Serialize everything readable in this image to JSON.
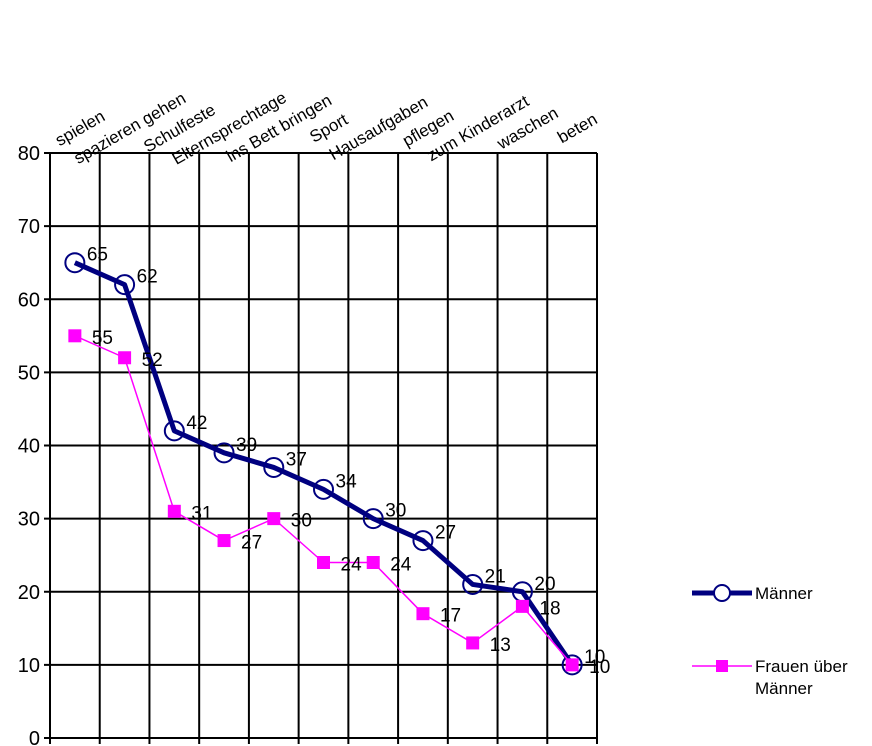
{
  "chart_data": {
    "type": "line",
    "title": "",
    "xlabel": "",
    "ylabel": "",
    "categories": [
      "spielen",
      "spazieren gehen",
      "Schulfeste",
      "Elternsprechtage",
      "ins Bett bringen",
      "Sport",
      "Hausaufgaben",
      "pflegen",
      "zum Kinderarzt",
      "waschen",
      "beten"
    ],
    "ylim": [
      0,
      80
    ],
    "yticks": [
      0,
      10,
      20,
      30,
      40,
      50,
      60,
      70,
      80
    ],
    "grid": true,
    "legend_position": "right",
    "series": [
      {
        "name": "Männer",
        "values": [
          65,
          62,
          42,
          39,
          37,
          34,
          30,
          27,
          21,
          20,
          10
        ],
        "color": "#000080",
        "marker": "circle"
      },
      {
        "name": "Frauen über Männer",
        "values": [
          55,
          52,
          31,
          27,
          30,
          24,
          24,
          17,
          13,
          18,
          10
        ],
        "color": "#ff00ff",
        "marker": "square"
      }
    ]
  }
}
